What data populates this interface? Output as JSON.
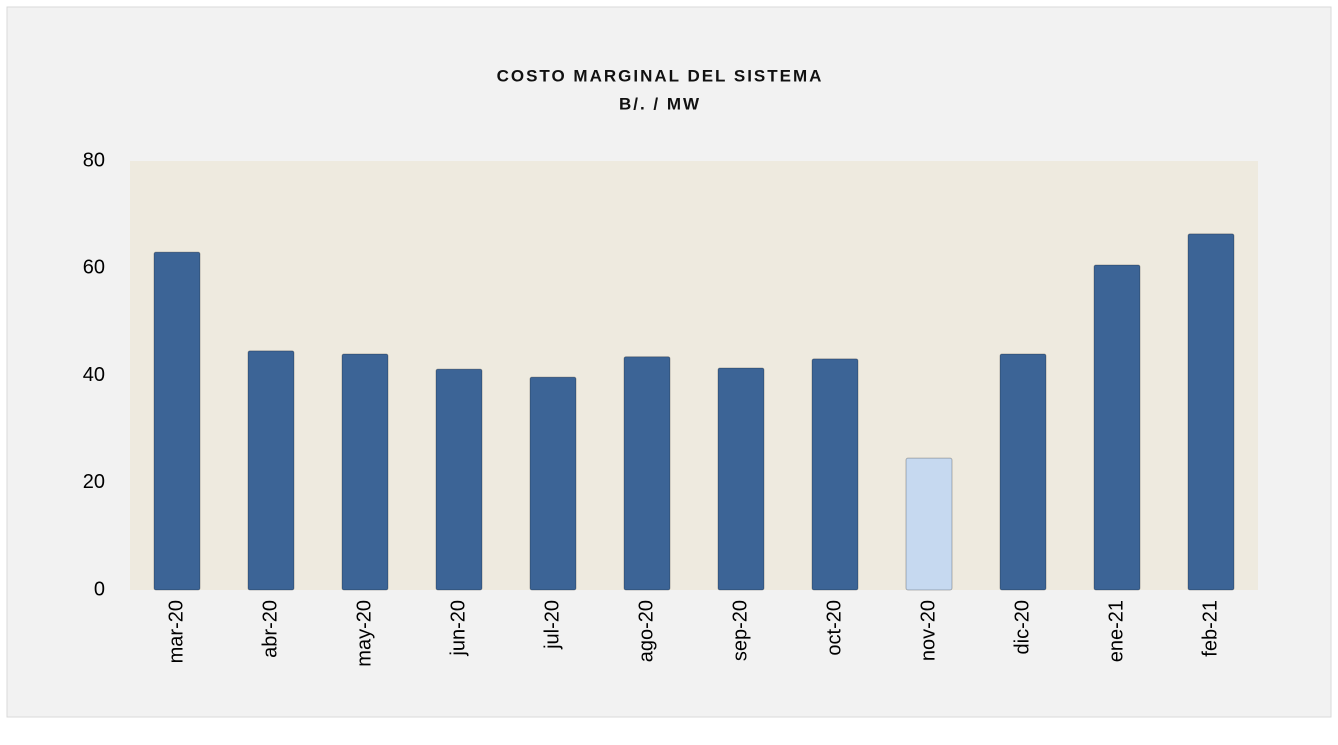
{
  "chart_data": {
    "type": "bar",
    "title": "COSTO  MARGINAL  DEL  SISTEMA",
    "subtitle": "B/.  / MW",
    "categories": [
      "mar-20",
      "abr-20",
      "may-20",
      "jun-20",
      "jul-20",
      "ago-20",
      "sep-20",
      "oct-20",
      "nov-20",
      "dic-20",
      "ene-21",
      "feb-21"
    ],
    "values": [
      63,
      44.6,
      44,
      41.2,
      39.7,
      43.5,
      41.4,
      43.1,
      24.6,
      44,
      60.6,
      66.4
    ],
    "colors": [
      "#3c6496",
      "#3c6496",
      "#3c6496",
      "#3c6496",
      "#3c6496",
      "#3c6496",
      "#3c6496",
      "#3c6496",
      "#c6d9f0",
      "#3c6496",
      "#3c6496",
      "#3c6496"
    ],
    "ylim": [
      0,
      80
    ],
    "yticks": [
      0,
      20,
      40,
      60,
      80
    ],
    "grid": false
  }
}
